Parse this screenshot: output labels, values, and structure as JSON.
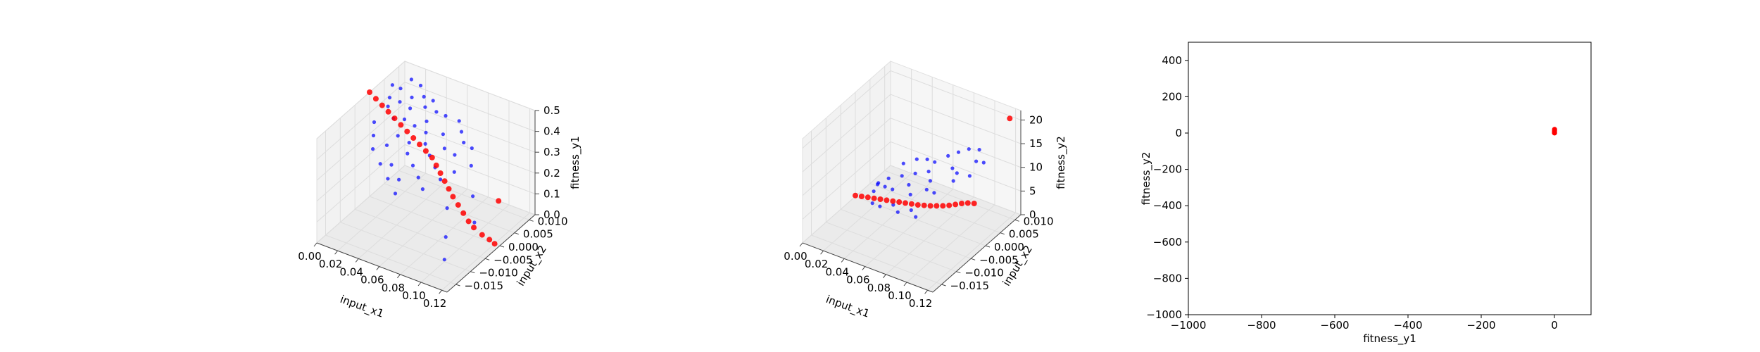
{
  "colors": {
    "series_blue": "#0000ff",
    "series_red": "#ff0000",
    "pane": "#f2f2f2",
    "grid": "#dddddd",
    "axis": "#000000"
  },
  "chart_data": [
    {
      "type": "scatter",
      "projection": "3d",
      "grid": true,
      "xlabel": "input_x1",
      "ylabel": "input_x2",
      "zlabel": "fitness_y1",
      "xlim": [
        0,
        0.125
      ],
      "ylim": [
        -0.018,
        0.012
      ],
      "zlim": [
        0,
        0.5
      ],
      "x_ticks": [
        "0.00",
        "0.02",
        "0.04",
        "0.06",
        "0.08",
        "0.10",
        "0.12"
      ],
      "y_ticks": [
        "−0.015",
        "−0.010",
        "−0.005",
        "0.000",
        "0.005",
        "0.010"
      ],
      "z_ticks": [
        "0.0",
        "0.1",
        "0.2",
        "0.3",
        "0.4",
        "0.5"
      ],
      "x_tick_values": [
        0,
        0.02,
        0.04,
        0.06,
        0.08,
        0.1,
        0.12
      ],
      "y_tick_values": [
        -0.015,
        -0.01,
        -0.005,
        0.0,
        0.005,
        0.01
      ],
      "z_tick_values": [
        0,
        0.1,
        0.2,
        0.3,
        0.4,
        0.5
      ],
      "series": [
        {
          "color": "blue",
          "points": [
            [
              0.005,
              0.006,
              0.47
            ],
            [
              0.008,
              0.004,
              0.44
            ],
            [
              0.01,
              0.007,
              0.45
            ],
            [
              0.012,
              0.002,
              0.43
            ],
            [
              0.015,
              0.005,
              0.42
            ],
            [
              0.018,
              0.008,
              0.41
            ],
            [
              0.02,
              0.001,
              0.4
            ],
            [
              0.022,
              0.006,
              0.39
            ],
            [
              0.025,
              0.003,
              0.38
            ],
            [
              0.028,
              0.009,
              0.37
            ],
            [
              0.03,
              -0.001,
              0.36
            ],
            [
              0.032,
              0.004,
              0.35
            ],
            [
              0.035,
              0.007,
              0.34
            ],
            [
              0.038,
              0.0,
              0.33
            ],
            [
              0.04,
              0.005,
              0.32
            ],
            [
              0.042,
              -0.002,
              0.31
            ],
            [
              0.045,
              0.003,
              0.3
            ],
            [
              0.048,
              0.008,
              0.29
            ],
            [
              0.05,
              -0.003,
              0.28
            ],
            [
              0.052,
              0.002,
              0.27
            ],
            [
              0.055,
              0.006,
              0.26
            ],
            [
              0.058,
              -0.004,
              0.25
            ],
            [
              0.06,
              0.001,
              0.24
            ],
            [
              0.062,
              0.007,
              0.23
            ],
            [
              0.065,
              -0.005,
              0.22
            ],
            [
              0.068,
              0.0,
              0.21
            ],
            [
              0.07,
              0.004,
              0.2
            ],
            [
              0.01,
              -0.002,
              0.4
            ],
            [
              0.015,
              -0.004,
              0.37
            ],
            [
              0.02,
              -0.006,
              0.34
            ],
            [
              0.025,
              -0.003,
              0.33
            ],
            [
              0.03,
              -0.007,
              0.3
            ],
            [
              0.035,
              -0.005,
              0.28
            ],
            [
              0.04,
              -0.008,
              0.26
            ],
            [
              0.045,
              -0.006,
              0.24
            ],
            [
              0.05,
              -0.009,
              0.22
            ],
            [
              0.012,
              0.01,
              0.46
            ],
            [
              0.018,
              0.011,
              0.43
            ],
            [
              0.024,
              0.01,
              0.4
            ],
            [
              0.03,
              0.011,
              0.38
            ],
            [
              0.036,
              0.01,
              0.35
            ],
            [
              0.042,
              0.011,
              0.33
            ],
            [
              0.075,
              0.008,
              0.19
            ],
            [
              0.08,
              -0.002,
              0.12
            ],
            [
              0.085,
              0.005,
              0.1
            ],
            [
              0.09,
              -0.006,
              0.05
            ],
            [
              0.095,
              0.002,
              0.03
            ],
            [
              0.1,
              -0.01,
              0.01
            ],
            [
              0.06,
              0.01,
              0.3
            ],
            [
              0.055,
              0.011,
              0.33
            ],
            [
              0.065,
              0.009,
              0.27
            ],
            [
              0.07,
              0.01,
              0.24
            ]
          ]
        },
        {
          "color": "red",
          "points": [
            [
              0.0,
              0.0,
              0.5
            ],
            [
              0.006,
              0.0,
              0.48
            ],
            [
              0.012,
              0.0,
              0.46
            ],
            [
              0.018,
              0.0,
              0.44
            ],
            [
              0.024,
              0.0,
              0.42
            ],
            [
              0.03,
              0.0,
              0.4
            ],
            [
              0.036,
              0.0,
              0.38
            ],
            [
              0.042,
              0.0,
              0.36
            ],
            [
              0.048,
              0.0,
              0.34
            ],
            [
              0.054,
              0.0,
              0.32
            ],
            [
              0.06,
              0.0,
              0.3
            ],
            [
              0.064,
              0.0,
              0.27
            ],
            [
              0.068,
              0.0,
              0.24
            ],
            [
              0.072,
              0.0,
              0.21
            ],
            [
              0.076,
              0.0,
              0.18
            ],
            [
              0.08,
              0.0,
              0.15
            ],
            [
              0.085,
              0.0,
              0.12
            ],
            [
              0.09,
              0.0,
              0.09
            ],
            [
              0.095,
              0.0,
              0.06
            ],
            [
              0.1,
              0.0,
              0.04
            ],
            [
              0.108,
              0.0,
              0.02
            ],
            [
              0.115,
              0.0,
              0.01
            ],
            [
              0.12,
              0.0,
              0.0
            ],
            [
              0.09,
              0.012,
              0.0
            ]
          ]
        }
      ]
    },
    {
      "type": "scatter",
      "projection": "3d",
      "grid": true,
      "xlabel": "input_x1",
      "ylabel": "input_x2",
      "zlabel": "fitness_y2",
      "xlim": [
        0,
        0.125
      ],
      "ylim": [
        -0.018,
        0.012
      ],
      "zlim": [
        0,
        22
      ],
      "x_ticks": [
        "0.00",
        "0.02",
        "0.04",
        "0.06",
        "0.08",
        "0.10",
        "0.12"
      ],
      "y_ticks": [
        "−0.015",
        "−0.010",
        "−0.005",
        "0.000",
        "0.005",
        "0.010"
      ],
      "z_ticks": [
        "0",
        "5",
        "10",
        "15",
        "20"
      ],
      "x_tick_values": [
        0,
        0.02,
        0.04,
        0.06,
        0.08,
        0.1,
        0.12
      ],
      "y_tick_values": [
        -0.015,
        -0.01,
        -0.005,
        0.0,
        0.005,
        0.01
      ],
      "z_tick_values": [
        0,
        5,
        10,
        15,
        20
      ],
      "series": [
        {
          "color": "blue",
          "points": [
            [
              0.01,
              0.004,
              1.2
            ],
            [
              0.015,
              0.006,
              1.8
            ],
            [
              0.02,
              0.003,
              2.1
            ],
            [
              0.025,
              0.007,
              2.6
            ],
            [
              0.03,
              0.002,
              2.9
            ],
            [
              0.035,
              0.008,
              3.4
            ],
            [
              0.04,
              0.004,
              3.6
            ],
            [
              0.045,
              0.009,
              4.1
            ],
            [
              0.05,
              0.001,
              4.0
            ],
            [
              0.055,
              0.006,
              4.6
            ],
            [
              0.06,
              0.003,
              4.8
            ],
            [
              0.065,
              0.01,
              5.9
            ],
            [
              0.07,
              0.002,
              5.5
            ],
            [
              0.075,
              0.008,
              6.8
            ],
            [
              0.08,
              0.005,
              7.2
            ],
            [
              0.085,
              0.011,
              8.5
            ],
            [
              0.09,
              0.007,
              8.0
            ],
            [
              0.095,
              0.01,
              9.6
            ],
            [
              0.018,
              0.01,
              3.0
            ],
            [
              0.028,
              0.011,
              4.2
            ],
            [
              0.038,
              0.011,
              5.0
            ],
            [
              0.048,
              0.01,
              5.8
            ],
            [
              0.058,
              0.011,
              7.4
            ],
            [
              0.068,
              0.011,
              9.0
            ],
            [
              0.022,
              -0.002,
              1.5
            ],
            [
              0.032,
              -0.003,
              2.2
            ],
            [
              0.042,
              -0.002,
              2.8
            ],
            [
              0.052,
              -0.004,
              3.2
            ],
            [
              0.062,
              -0.003,
              3.9
            ],
            [
              0.072,
              -0.005,
              4.4
            ],
            [
              0.012,
              0.002,
              1.0
            ],
            [
              0.008,
              0.005,
              0.8
            ],
            [
              0.078,
              0.011,
              10.5
            ],
            [
              0.088,
              0.011,
              11.2
            ]
          ]
        },
        {
          "color": "red",
          "points": [
            [
              0.0,
              0.0,
              0.2
            ],
            [
              0.006,
              0.0,
              0.5
            ],
            [
              0.012,
              0.0,
              0.8
            ],
            [
              0.018,
              0.0,
              1.1
            ],
            [
              0.024,
              0.0,
              1.4
            ],
            [
              0.03,
              0.0,
              1.7
            ],
            [
              0.036,
              0.0,
              2.0
            ],
            [
              0.042,
              0.0,
              2.3
            ],
            [
              0.048,
              0.0,
              2.6
            ],
            [
              0.054,
              0.0,
              2.9
            ],
            [
              0.06,
              0.0,
              3.2
            ],
            [
              0.066,
              0.0,
              3.6
            ],
            [
              0.072,
              0.0,
              4.0
            ],
            [
              0.078,
              0.0,
              4.5
            ],
            [
              0.084,
              0.0,
              5.0
            ],
            [
              0.09,
              0.0,
              5.6
            ],
            [
              0.096,
              0.0,
              6.3
            ],
            [
              0.102,
              0.0,
              7.0
            ],
            [
              0.108,
              0.0,
              7.6
            ],
            [
              0.114,
              0.0,
              8.0
            ],
            [
              0.12,
              0.01,
              21.0
            ]
          ]
        }
      ]
    },
    {
      "type": "scatter",
      "projection": "2d",
      "grid": false,
      "xlabel": "fitness_y1",
      "ylabel": "fitness_y2",
      "xlim": [
        -1000,
        100
      ],
      "ylim": [
        -1000,
        500
      ],
      "x_ticks": [
        "−1000",
        "−800",
        "−600",
        "−400",
        "−200",
        "0"
      ],
      "x_tick_values": [
        -1000,
        -800,
        -600,
        -400,
        -200,
        0
      ],
      "y_ticks": [
        "−1000",
        "−800",
        "−600",
        "−400",
        "−200",
        "0",
        "200",
        "400"
      ],
      "y_tick_values": [
        -1000,
        -800,
        -600,
        -400,
        -200,
        0,
        200,
        400
      ],
      "series": [
        {
          "color": "red",
          "points": [
            [
              0.0,
              0.5
            ],
            [
              0.05,
              2.0
            ],
            [
              0.1,
              5.0
            ],
            [
              0.2,
              10.0
            ],
            [
              0.3,
              15.0
            ],
            [
              0.4,
              20.0
            ],
            [
              0.45,
              21.0
            ],
            [
              0.1,
              1.0
            ],
            [
              0.25,
              8.0
            ],
            [
              0.35,
              12.0
            ],
            [
              0.5,
              0.2
            ]
          ]
        }
      ]
    }
  ]
}
